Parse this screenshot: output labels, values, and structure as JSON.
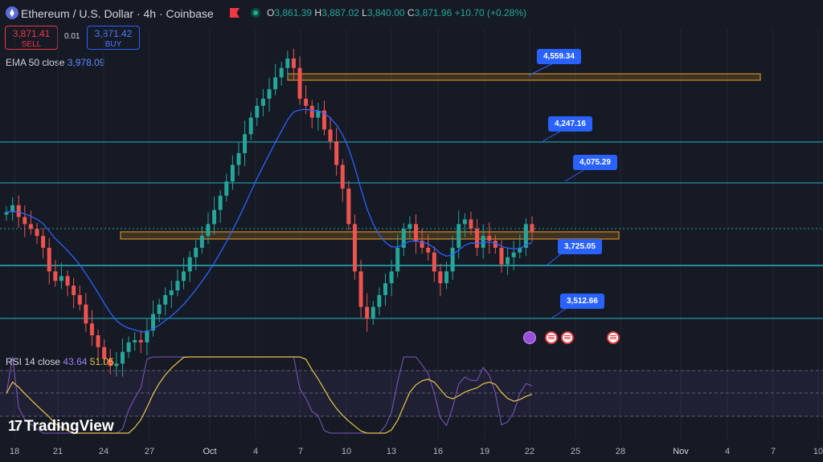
{
  "header": {
    "title": "Ethereum / U.S. Dollar · 4h · Coinbase",
    "ohlc": {
      "o_key": "O",
      "o_val": "3,861.39",
      "h_key": "H",
      "h_val": "3,887.02",
      "l_key": "L",
      "l_val": "3,840.00",
      "c_key": "C",
      "c_val": "3,871.96",
      "change": "+10.70 (+0.28%)"
    }
  },
  "trade": {
    "sell_price": "3,871.41",
    "sell_label": "SELL",
    "spread": "0.01",
    "buy_price": "3,871.42",
    "buy_label": "BUY"
  },
  "indicators": {
    "ema_label": "EMA 50 close",
    "ema_value": "3,978.09",
    "rsi_label": "RSI 14 close",
    "rsi_value": "43.64",
    "rsi_ma_value": "51.05"
  },
  "levels": [
    {
      "label": "4,559.34",
      "value": 4559.34
    },
    {
      "label": "4,247.16",
      "value": 4247.16
    },
    {
      "label": "4,075.29",
      "value": 4075.29
    },
    {
      "label": "3,725.05",
      "value": 3725.05
    },
    {
      "label": "3,512.66",
      "value": 3512.66
    }
  ],
  "xaxis": {
    "labels": [
      "18",
      "21",
      "24",
      "27",
      "Oct",
      "4",
      "7",
      "10",
      "13",
      "16",
      "19",
      "22",
      "25",
      "28",
      "Nov",
      "4",
      "7",
      "10"
    ]
  },
  "branding": {
    "text": "TradingView"
  },
  "colors": {
    "background": "#161a25",
    "up": "#26a69a",
    "down": "#ef5350",
    "ema": "#2962ff",
    "zone_border": "#f0a321",
    "level_line": "#27b3c4",
    "rsi": "#7e57c2",
    "rsi_ma": "#e8c547"
  },
  "chart_data": {
    "type": "candlestick",
    "symbol": "ETH/USD",
    "interval": "4h",
    "close_series": [
      3950,
      3980,
      3930,
      3900,
      3880,
      3850,
      3800,
      3700,
      3660,
      3680,
      3640,
      3600,
      3560,
      3480,
      3430,
      3380,
      3330,
      3300,
      3310,
      3360,
      3400,
      3410,
      3400,
      3450,
      3520,
      3560,
      3600,
      3620,
      3660,
      3700,
      3760,
      3800,
      3850,
      3900,
      3960,
      4020,
      4080,
      4150,
      4200,
      4280,
      4350,
      4400,
      4430,
      4470,
      4520,
      4560,
      4600,
      4560,
      4430,
      4400,
      4350,
      4380,
      4300,
      4250,
      4150,
      4050,
      3900,
      3700,
      3550,
      3500,
      3550,
      3600,
      3650,
      3700,
      3800,
      3880,
      3900,
      3830,
      3800,
      3780,
      3700,
      3650,
      3700,
      3800,
      3900,
      3920,
      3880,
      3800,
      3850,
      3830,
      3800,
      3730,
      3760,
      3780,
      3800,
      3900,
      3870
    ],
    "ema_label": "EMA 50 close",
    "rsi_label": "RSI 14 close",
    "x_labels": [
      "18",
      "21",
      "24",
      "27",
      "Oct",
      "4",
      "7",
      "10",
      "13",
      "16",
      "19",
      "22",
      "25",
      "28",
      "Nov",
      "4",
      "7",
      "10"
    ]
  }
}
